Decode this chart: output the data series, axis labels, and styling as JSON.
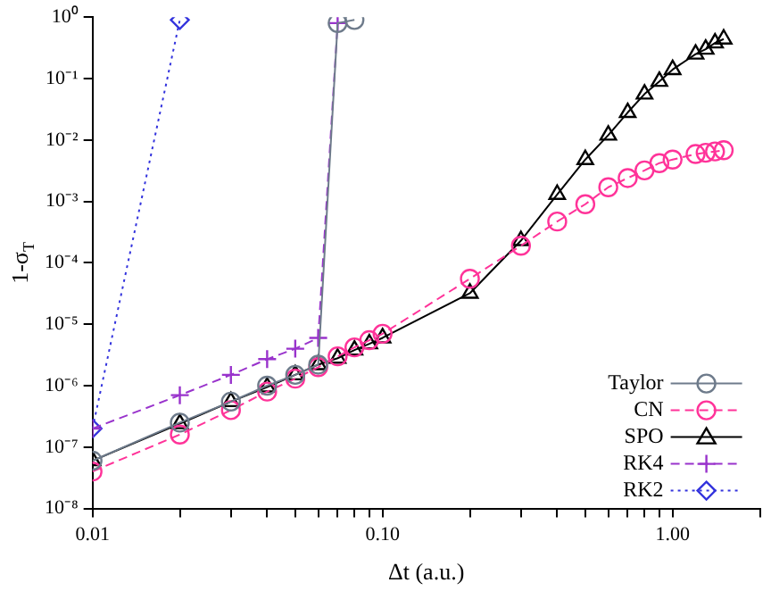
{
  "chart_data": {
    "type": "line",
    "xlabel": "Δt (a.u.)",
    "ylabel": "1-σ$_{T}$",
    "log": "xy",
    "grid": false,
    "legend": "bottom right",
    "xlim": [
      0.01,
      2
    ],
    "ylim": [
      1e-08,
      1
    ],
    "xticks": [
      {
        "value": 0.01,
        "label": "0.01"
      },
      {
        "value": 0.02,
        "label": null
      },
      {
        "value": 0.03,
        "label": null
      },
      {
        "value": 0.04,
        "label": null
      },
      {
        "value": 0.05,
        "label": null
      },
      {
        "value": 0.06,
        "label": null
      },
      {
        "value": 0.07,
        "label": null
      },
      {
        "value": 0.08,
        "label": null
      },
      {
        "value": 0.09,
        "label": null
      },
      {
        "value": 0.1,
        "label": "0.10"
      },
      {
        "value": 0.2,
        "label": null
      },
      {
        "value": 0.3,
        "label": null
      },
      {
        "value": 0.4,
        "label": null
      },
      {
        "value": 0.5,
        "label": null
      },
      {
        "value": 0.6,
        "label": null
      },
      {
        "value": 0.7,
        "label": null
      },
      {
        "value": 0.8,
        "label": null
      },
      {
        "value": 0.9,
        "label": null
      },
      {
        "value": 1,
        "label": "1.00"
      },
      {
        "value": 2,
        "label": null
      }
    ],
    "yticks": [
      {
        "value": 1e-08,
        "label": "10⁻⁸"
      },
      {
        "value": 1e-07,
        "label": "10⁻⁷"
      },
      {
        "value": 1e-06,
        "label": "10⁻⁶"
      },
      {
        "value": 1e-05,
        "label": "10⁻⁵"
      },
      {
        "value": 0.0001,
        "label": "10⁻⁴"
      },
      {
        "value": 0.001,
        "label": "10⁻³"
      },
      {
        "value": 0.01,
        "label": "10⁻²"
      },
      {
        "value": 0.1,
        "label": "10⁻¹"
      },
      {
        "value": 1,
        "label": "10⁰"
      }
    ],
    "series": [
      {
        "name": "Taylor",
        "color": "#6e7b8b",
        "marker": "circle",
        "line_style": "solid",
        "x": [
          0.01,
          0.02,
          0.03,
          0.04,
          0.05,
          0.06,
          0.07,
          0.08
        ],
        "values": [
          6e-08,
          2.5e-07,
          5.5e-07,
          1e-06,
          1.5e-06,
          2.2e-06,
          0.8,
          0.9
        ]
      },
      {
        "name": "CN",
        "color": "#ff3399",
        "marker": "circle",
        "line_style": "dashed",
        "x": [
          0.01,
          0.02,
          0.03,
          0.04,
          0.05,
          0.06,
          0.07,
          0.08,
          0.09,
          0.1,
          0.2,
          0.3,
          0.4,
          0.5,
          0.6,
          0.7,
          0.8,
          0.9,
          1,
          1.2,
          1.3,
          1.4,
          1.5
        ],
        "values": [
          4e-08,
          1.6e-07,
          4e-07,
          8e-07,
          1.3e-06,
          2e-06,
          3e-06,
          4.2e-06,
          5.5e-06,
          7e-06,
          5.5e-05,
          0.00019,
          0.00047,
          0.0009,
          0.0017,
          0.0024,
          0.0032,
          0.0042,
          0.0048,
          0.0059,
          0.0062,
          0.0065,
          0.0068
        ]
      },
      {
        "name": "SPO",
        "color": "#000000",
        "marker": "triangle",
        "line_style": "solid",
        "x": [
          0.01,
          0.02,
          0.03,
          0.04,
          0.05,
          0.06,
          0.07,
          0.08,
          0.09,
          0.1,
          0.2,
          0.3,
          0.4,
          0.5,
          0.6,
          0.7,
          0.8,
          0.9,
          1,
          1.2,
          1.3,
          1.4,
          1.5
        ],
        "values": [
          6e-08,
          2.4e-07,
          5.5e-07,
          9.5e-07,
          1.5e-06,
          2.2e-06,
          2.8e-06,
          3.8e-06,
          4.8e-06,
          6e-06,
          3.2e-05,
          0.00023,
          0.0013,
          0.0048,
          0.012,
          0.028,
          0.056,
          0.09,
          0.14,
          0.25,
          0.3,
          0.38,
          0.44
        ]
      },
      {
        "name": "RK4",
        "color": "#9933cc",
        "marker": "cross",
        "line_style": "dashed",
        "x": [
          0.01,
          0.02,
          0.03,
          0.04,
          0.05,
          0.06,
          0.07
        ],
        "values": [
          2e-07,
          7e-07,
          1.5e-06,
          2.7e-06,
          4e-06,
          6e-06,
          0.8
        ]
      },
      {
        "name": "RK2",
        "color": "#3333dd",
        "marker": "diamond",
        "line_style": "dotted",
        "x": [
          0.01,
          0.02
        ],
        "values": [
          2e-07,
          0.9
        ]
      }
    ]
  }
}
